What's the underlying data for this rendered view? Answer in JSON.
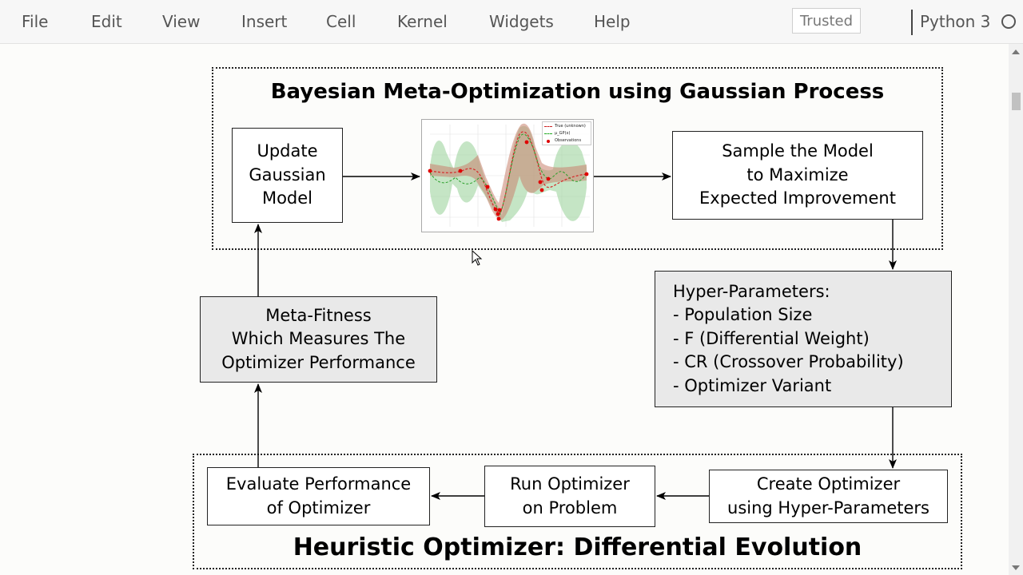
{
  "menu": {
    "items": [
      "File",
      "Edit",
      "View",
      "Insert",
      "Cell",
      "Kernel",
      "Widgets",
      "Help"
    ],
    "trusted_label": "Trusted",
    "kernel_label": "Python 3",
    "kernel_status_icon": "kernel-idle-circle-icon"
  },
  "diagram": {
    "top_title": "Bayesian Meta-Optimization using Gaussian Process",
    "bottom_title": "Heuristic Optimizer: Differential Evolution",
    "update_model": "Update\nGaussian\nModel",
    "sample_model": "Sample the Model\nto Maximize\nExpected Improvement",
    "hyper_params": "Hyper-Parameters:\n- Population Size\n- F (Differential Weight)\n- CR (Crossover Probability)\n- Optimizer Variant",
    "meta_fitness": "Meta-Fitness\nWhich Measures The\nOptimizer Performance",
    "create_optimizer": "Create Optimizer\nusing Hyper-Parameters",
    "run_optimizer": "Run Optimizer\non Problem",
    "evaluate_performance": "Evaluate Performance\nof Optimizer"
  },
  "gp_plot": {
    "legend": [
      "True (unknown)",
      "μ_GP(x)",
      "Observations"
    ],
    "colors": {
      "true": "#d62728",
      "mean": "#2ca02c",
      "band_mean": "#9fd39f",
      "band_true": "#d9a090",
      "obs": "#e00000"
    }
  }
}
